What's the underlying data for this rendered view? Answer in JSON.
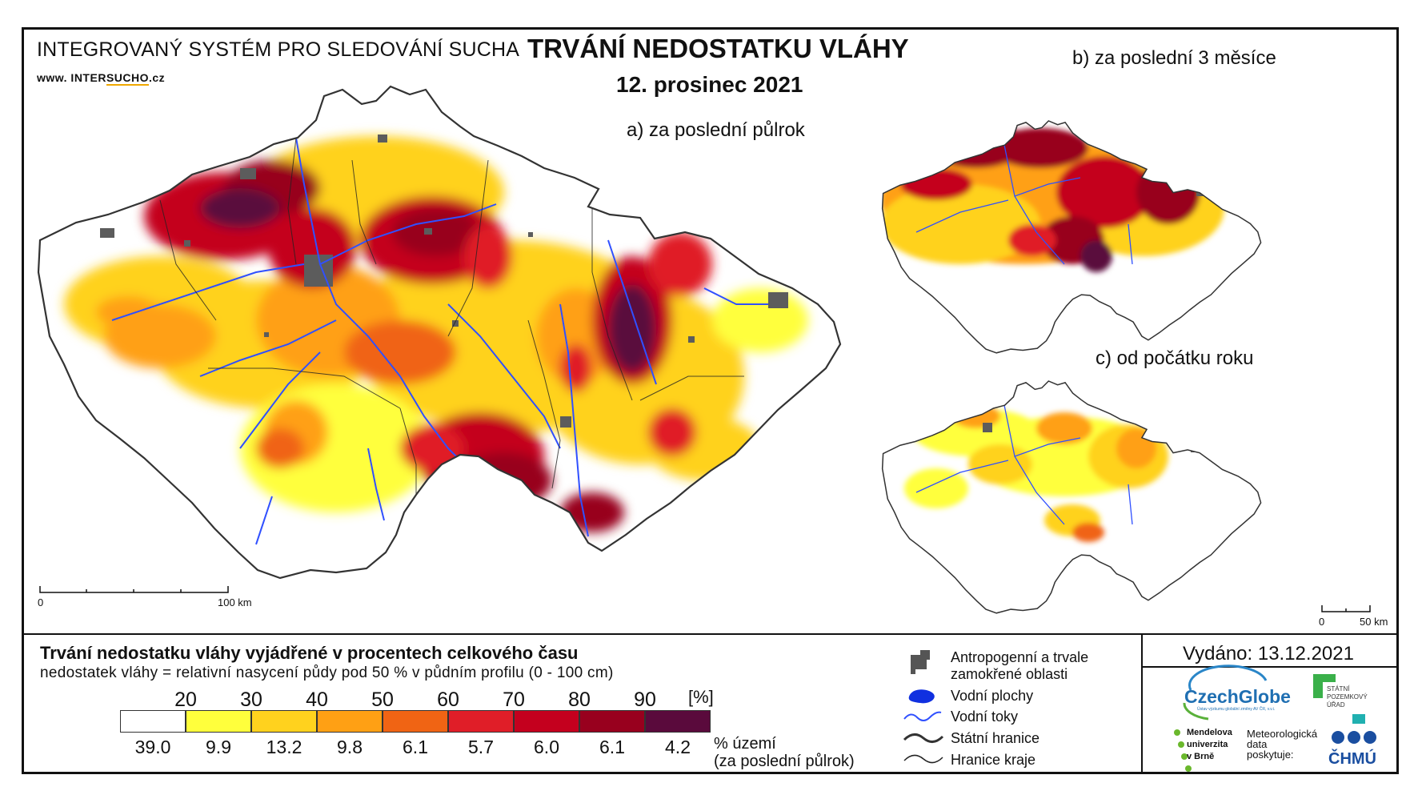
{
  "header": {
    "system_title": "INTEGROVANÝ SYSTÉM PRO SLEDOVÁNÍ SUCHA",
    "website_prefix": "www. INTER",
    "website_mid": "SUCHO",
    "website_suffix": ".cz",
    "title": "TRVÁNÍ NEDOSTATKU VLÁHY",
    "date": "12. prosinec 2021"
  },
  "maps": {
    "a_label": "a) za poslední půlrok",
    "b_label": "b) za poslední 3 měsíce",
    "c_label": "c) od počátku roku"
  },
  "scale_bars": {
    "main_start": "0",
    "main_end": "100 km",
    "small_start": "0",
    "small_end": "50 km"
  },
  "legend": {
    "title": "Trvání nedostatku vláhy vyjádřené v procentech celkového času",
    "subtitle": "nedostatek vláhy = relativní nasycení půdy pod 50 % v půdním profilu (0 - 100 cm)",
    "unit": "[%]",
    "thresholds": [
      "20",
      "30",
      "40",
      "50",
      "60",
      "70",
      "80",
      "90"
    ],
    "colors": [
      "#ffffff",
      "#ffff3c",
      "#ffd21e",
      "#ffa014",
      "#f06414",
      "#e01e28",
      "#c4001e",
      "#98001e",
      "#5a0a3c"
    ],
    "area_percent": [
      "39.0",
      "9.9",
      "13.2",
      "9.8",
      "6.1",
      "5.7",
      "6.0",
      "6.1",
      "4.2"
    ],
    "area_label": "% území",
    "area_sublabel": "(za poslední půlrok)"
  },
  "symbols": {
    "anthropogenic_1": "Antropogenní a trvale",
    "anthropogenic_2": "zamokřené oblasti",
    "water_bodies": "Vodní plochy",
    "streams": "Vodní toky",
    "state_border": "Státní hranice",
    "region_border": "Hranice kraje"
  },
  "issued": "Vydáno: 13.12.2021",
  "logos": {
    "czechglobe": "CzechGlobe",
    "czechglobe_sub": "Ústav výzkumu globální změny AV ČR, v.v.i.",
    "spu_1": "STÁTNÍ",
    "spu_2": "POZEMKOVÝ",
    "spu_3": "ÚŘAD",
    "mendelu_1": "Mendelova",
    "mendelu_2": "univerzita",
    "mendelu_3": "v Brně",
    "meteo_1": "Meteorologická",
    "meteo_2": "data",
    "meteo_3": "poskytuje:",
    "chmu": "ČHMÚ"
  }
}
